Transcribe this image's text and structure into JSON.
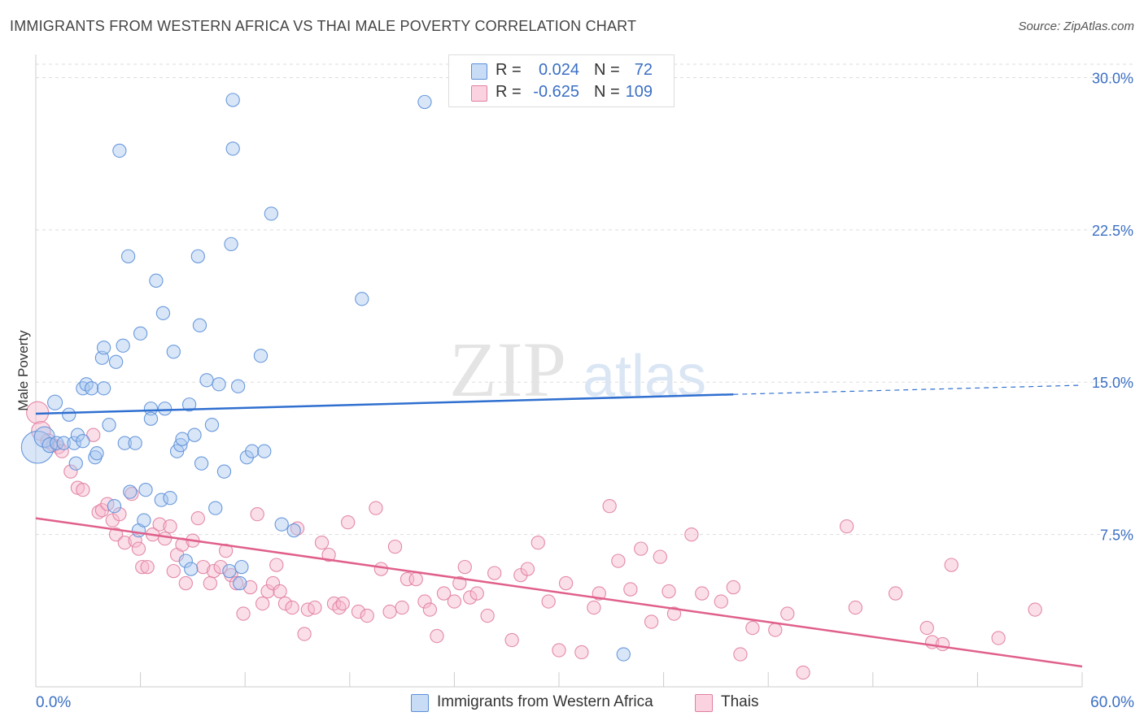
{
  "header": {
    "title": "IMMIGRANTS FROM WESTERN AFRICA VS THAI MALE POVERTY CORRELATION CHART",
    "source": "Source: ZipAtlas.com"
  },
  "watermark": {
    "zip": "ZIP",
    "atlas": "atlas"
  },
  "stats_legend": {
    "rows": [
      {
        "r_label": "R =",
        "r_value": "0.024",
        "n_label": "N =",
        "n_value": "72",
        "color": "#a9c8f0"
      },
      {
        "r_label": "R =",
        "r_value": "-0.625",
        "n_label": "N =",
        "n_value": "109",
        "color": "#f7b8cc"
      }
    ]
  },
  "bottom_legend": {
    "items": [
      {
        "label": "Immigrants from Western Africa",
        "color": "#a9c8f0"
      },
      {
        "label": "Thais",
        "color": "#f7b8cc"
      }
    ]
  },
  "chart_data": {
    "type": "scatter",
    "title": "IMMIGRANTS FROM WESTERN AFRICA VS THAI MALE POVERTY CORRELATION CHART",
    "xlabel": "",
    "ylabel": "Male Poverty",
    "xlim": [
      0,
      60
    ],
    "ylim": [
      0,
      30.9
    ],
    "x_tick_labels": [
      "0.0%",
      "60.0%"
    ],
    "y_ticks": [
      7.5,
      15.0,
      22.5,
      30.0
    ],
    "y_tick_labels": [
      "7.5%",
      "15.0%",
      "22.5%",
      "30.0%"
    ],
    "grid": true,
    "colors": {
      "blue_fill": "#a9c8f0",
      "blue_stroke": "#5b8fd8",
      "blue_line": "#2f6fd0",
      "pink_fill": "#f7b8cc",
      "pink_stroke": "#e07ea0",
      "pink_line": "#e0608a",
      "grid": "#dddddd",
      "axis_text": "#3a6fc4"
    },
    "series": [
      {
        "name": "Immigrants from Western Africa",
        "color": "#a9c8f0",
        "points": [
          [
            0.1,
            11.8,
            2.2
          ],
          [
            0.5,
            12.3,
            1.4
          ],
          [
            0.8,
            11.9,
            1.0
          ],
          [
            1.1,
            14.0,
            1.0
          ],
          [
            1.2,
            12.0,
            0.9
          ],
          [
            1.6,
            12.0,
            0.9
          ],
          [
            1.9,
            13.4,
            0.9
          ],
          [
            2.2,
            12.0,
            0.9
          ],
          [
            2.3,
            11.0,
            0.9
          ],
          [
            2.4,
            12.4,
            0.9
          ],
          [
            2.7,
            12.1,
            0.9
          ],
          [
            2.7,
            14.7,
            0.9
          ],
          [
            2.9,
            14.9,
            0.9
          ],
          [
            3.2,
            14.7,
            0.9
          ],
          [
            3.4,
            11.3,
            0.9
          ],
          [
            3.5,
            11.5,
            0.9
          ],
          [
            3.8,
            16.2,
            0.9
          ],
          [
            3.9,
            16.7,
            0.9
          ],
          [
            3.9,
            14.7,
            0.9
          ],
          [
            4.2,
            12.9,
            0.9
          ],
          [
            4.5,
            8.9,
            0.9
          ],
          [
            4.6,
            16.0,
            0.9
          ],
          [
            4.8,
            26.4,
            0.9
          ],
          [
            5.0,
            16.8,
            0.9
          ],
          [
            5.1,
            12.0,
            0.9
          ],
          [
            5.3,
            21.2,
            0.9
          ],
          [
            5.4,
            9.6,
            0.9
          ],
          [
            5.7,
            12.0,
            0.9
          ],
          [
            5.9,
            7.7,
            0.9
          ],
          [
            6.0,
            17.4,
            0.9
          ],
          [
            6.2,
            8.2,
            0.9
          ],
          [
            6.3,
            9.7,
            0.9
          ],
          [
            6.6,
            13.7,
            0.9
          ],
          [
            6.6,
            13.2,
            0.9
          ],
          [
            6.9,
            20.0,
            0.9
          ],
          [
            7.2,
            9.2,
            0.9
          ],
          [
            7.3,
            18.4,
            0.9
          ],
          [
            7.4,
            13.7,
            0.9
          ],
          [
            7.7,
            9.3,
            0.9
          ],
          [
            7.9,
            16.5,
            0.9
          ],
          [
            8.1,
            11.6,
            0.9
          ],
          [
            8.3,
            11.9,
            0.9
          ],
          [
            8.4,
            12.2,
            0.9
          ],
          [
            8.6,
            6.2,
            0.9
          ],
          [
            8.8,
            13.9,
            0.9
          ],
          [
            8.9,
            5.8,
            0.9
          ],
          [
            9.1,
            12.4,
            0.9
          ],
          [
            9.3,
            21.2,
            0.9
          ],
          [
            9.4,
            17.8,
            0.9
          ],
          [
            9.5,
            11.0,
            0.9
          ],
          [
            9.8,
            15.1,
            0.9
          ],
          [
            10.1,
            12.9,
            0.9
          ],
          [
            10.3,
            8.8,
            0.9
          ],
          [
            10.5,
            14.9,
            0.9
          ],
          [
            10.8,
            10.6,
            0.9
          ],
          [
            11.1,
            5.7,
            0.9
          ],
          [
            11.2,
            21.8,
            0.9
          ],
          [
            11.3,
            26.5,
            0.9
          ],
          [
            11.3,
            28.9,
            0.9
          ],
          [
            11.6,
            14.8,
            0.9
          ],
          [
            11.7,
            5.1,
            0.9
          ],
          [
            11.8,
            5.9,
            0.9
          ],
          [
            12.1,
            11.3,
            0.9
          ],
          [
            12.4,
            11.6,
            0.9
          ],
          [
            12.9,
            16.3,
            0.9
          ],
          [
            13.1,
            11.6,
            0.9
          ],
          [
            13.5,
            23.3,
            0.9
          ],
          [
            14.1,
            8.0,
            0.9
          ],
          [
            14.8,
            7.7,
            0.9
          ],
          [
            18.7,
            19.1,
            0.9
          ],
          [
            22.3,
            28.8,
            0.9
          ],
          [
            33.7,
            1.6,
            0.9
          ]
        ],
        "trend": {
          "x": [
            0,
            40
          ],
          "y": [
            13.45,
            14.4
          ],
          "dash_to_x": 60,
          "dash_to_y": 14.85
        }
      },
      {
        "name": "Thais",
        "color": "#f7b8cc",
        "points": [
          [
            0.1,
            13.5,
            1.5
          ],
          [
            0.3,
            12.6,
            1.3
          ],
          [
            0.7,
            12.1,
            1.0
          ],
          [
            1.0,
            11.9,
            0.9
          ],
          [
            1.3,
            11.8,
            0.9
          ],
          [
            1.5,
            11.6,
            0.9
          ],
          [
            2.0,
            10.6,
            0.9
          ],
          [
            2.4,
            9.8,
            0.9
          ],
          [
            2.7,
            9.7,
            0.9
          ],
          [
            3.3,
            12.4,
            0.9
          ],
          [
            3.6,
            8.6,
            0.9
          ],
          [
            3.8,
            8.7,
            0.9
          ],
          [
            4.1,
            9.0,
            0.9
          ],
          [
            4.4,
            8.2,
            0.9
          ],
          [
            4.6,
            7.5,
            0.9
          ],
          [
            4.8,
            8.5,
            0.9
          ],
          [
            5.1,
            7.1,
            0.9
          ],
          [
            5.5,
            9.5,
            0.9
          ],
          [
            5.7,
            7.2,
            0.9
          ],
          [
            5.9,
            6.8,
            0.9
          ],
          [
            6.1,
            5.9,
            0.9
          ],
          [
            6.4,
            5.9,
            0.9
          ],
          [
            6.7,
            7.5,
            0.9
          ],
          [
            7.1,
            8.0,
            0.9
          ],
          [
            7.4,
            7.3,
            0.9
          ],
          [
            7.7,
            7.9,
            0.9
          ],
          [
            7.9,
            5.7,
            0.9
          ],
          [
            8.1,
            6.5,
            0.9
          ],
          [
            8.4,
            7.0,
            0.9
          ],
          [
            8.6,
            5.1,
            0.9
          ],
          [
            9.0,
            7.2,
            0.9
          ],
          [
            9.3,
            8.3,
            0.9
          ],
          [
            9.6,
            5.9,
            0.9
          ],
          [
            10.0,
            5.1,
            0.9
          ],
          [
            10.2,
            5.7,
            0.9
          ],
          [
            10.6,
            5.9,
            0.9
          ],
          [
            10.9,
            6.7,
            0.9
          ],
          [
            11.2,
            5.5,
            0.9
          ],
          [
            11.5,
            5.1,
            0.9
          ],
          [
            11.9,
            3.6,
            0.9
          ],
          [
            12.3,
            4.9,
            0.9
          ],
          [
            12.7,
            8.5,
            0.9
          ],
          [
            13.0,
            4.1,
            0.9
          ],
          [
            13.3,
            4.7,
            0.9
          ],
          [
            13.6,
            5.1,
            0.9
          ],
          [
            13.8,
            6.0,
            0.9
          ],
          [
            14.0,
            4.7,
            0.9
          ],
          [
            14.3,
            4.1,
            0.9
          ],
          [
            14.7,
            3.9,
            0.9
          ],
          [
            15.0,
            7.8,
            0.9
          ],
          [
            15.4,
            2.6,
            0.9
          ],
          [
            15.6,
            3.8,
            0.9
          ],
          [
            16.0,
            3.9,
            0.9
          ],
          [
            16.4,
            7.1,
            0.9
          ],
          [
            16.8,
            6.5,
            0.9
          ],
          [
            17.1,
            4.1,
            0.9
          ],
          [
            17.4,
            3.9,
            0.9
          ],
          [
            17.6,
            4.1,
            0.9
          ],
          [
            17.9,
            8.1,
            0.9
          ],
          [
            18.5,
            3.7,
            0.9
          ],
          [
            19.0,
            3.5,
            0.9
          ],
          [
            19.5,
            8.8,
            0.9
          ],
          [
            19.8,
            5.8,
            0.9
          ],
          [
            20.3,
            3.7,
            0.9
          ],
          [
            20.6,
            6.9,
            0.9
          ],
          [
            21.0,
            3.9,
            0.9
          ],
          [
            21.3,
            5.3,
            0.9
          ],
          [
            21.8,
            5.3,
            0.9
          ],
          [
            22.3,
            4.2,
            0.9
          ],
          [
            22.6,
            3.8,
            0.9
          ],
          [
            23.0,
            2.5,
            0.9
          ],
          [
            23.4,
            4.6,
            0.9
          ],
          [
            24.0,
            4.2,
            0.9
          ],
          [
            24.3,
            5.1,
            0.9
          ],
          [
            24.6,
            5.9,
            0.9
          ],
          [
            24.9,
            4.4,
            0.9
          ],
          [
            25.3,
            4.6,
            0.9
          ],
          [
            25.9,
            3.5,
            0.9
          ],
          [
            26.3,
            5.6,
            0.9
          ],
          [
            27.3,
            2.3,
            0.9
          ],
          [
            27.8,
            5.5,
            0.9
          ],
          [
            28.2,
            5.8,
            0.9
          ],
          [
            28.8,
            7.1,
            0.9
          ],
          [
            29.4,
            4.2,
            0.9
          ],
          [
            30.0,
            1.8,
            0.9
          ],
          [
            30.4,
            5.1,
            0.9
          ],
          [
            31.3,
            1.7,
            0.9
          ],
          [
            32.0,
            3.9,
            0.9
          ],
          [
            32.3,
            4.6,
            0.9
          ],
          [
            32.9,
            8.9,
            0.9
          ],
          [
            33.4,
            6.2,
            0.9
          ],
          [
            34.1,
            4.8,
            0.9
          ],
          [
            34.7,
            6.8,
            0.9
          ],
          [
            35.3,
            3.2,
            0.9
          ],
          [
            35.8,
            6.4,
            0.9
          ],
          [
            36.3,
            4.7,
            0.9
          ],
          [
            36.6,
            3.6,
            0.9
          ],
          [
            37.6,
            7.5,
            0.9
          ],
          [
            38.2,
            4.6,
            0.9
          ],
          [
            39.3,
            4.2,
            0.9
          ],
          [
            40.0,
            4.9,
            0.9
          ],
          [
            40.4,
            1.6,
            0.9
          ],
          [
            41.1,
            2.9,
            0.9
          ],
          [
            42.4,
            2.8,
            0.9
          ],
          [
            43.1,
            3.6,
            0.9
          ],
          [
            44.0,
            0.7,
            0.9
          ],
          [
            46.5,
            7.9,
            0.9
          ],
          [
            47.0,
            3.9,
            0.9
          ],
          [
            49.3,
            4.6,
            0.9
          ],
          [
            51.1,
            2.9,
            0.9
          ],
          [
            51.4,
            2.2,
            0.9
          ],
          [
            52.0,
            2.1,
            0.9
          ],
          [
            52.5,
            6.0,
            0.9
          ],
          [
            55.2,
            2.4,
            0.9
          ],
          [
            57.3,
            3.8,
            0.9
          ]
        ],
        "trend": {
          "x": [
            0,
            60
          ],
          "y": [
            8.3,
            1.0
          ]
        }
      }
    ]
  }
}
